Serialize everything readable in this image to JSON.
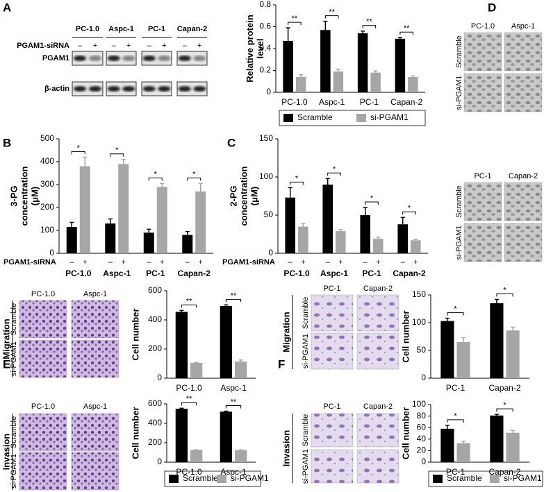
{
  "figure": {
    "panel_labels": [
      "A",
      "B",
      "C",
      "D",
      "E",
      "F"
    ],
    "blot": {
      "cell_lines": [
        "PC-1.0",
        "Aspc-1",
        "PC-1",
        "Capan-2"
      ],
      "treatment_label": "PGAM1-siRNA",
      "lanes": [
        "–",
        "+"
      ],
      "proteins": [
        "PGAM1",
        "β-actin"
      ]
    },
    "panel_d": {
      "top_lines": [
        "PC-1.0",
        "Aspc-1"
      ],
      "bottom_lines": [
        "PC-1",
        "Capan-2"
      ],
      "conditions": [
        "Scramble",
        "si-PGAM1"
      ]
    },
    "panel_e": {
      "lines": [
        "PC-1.0",
        "Aspc-1"
      ],
      "conditions": [
        "Scramble",
        "si-PGAM1"
      ],
      "assays": [
        "Migration",
        "Invasion"
      ]
    },
    "panel_f": {
      "lines": [
        "PC-1",
        "Capan-2"
      ],
      "conditions": [
        "Scramble",
        "si-PGAM1"
      ],
      "assays": [
        "Migration",
        "Invasion"
      ]
    }
  },
  "chart_data": [
    {
      "type": "bar",
      "ylabel": [
        "Relative protein",
        "level"
      ],
      "categories": [
        "PC-1.0",
        "Aspc-1",
        "PC-1",
        "Capan-2"
      ],
      "series": [
        {
          "name": "Scramble",
          "color": "#000000",
          "values": [
            0.47,
            0.57,
            0.54,
            0.49
          ],
          "errors": [
            0.12,
            0.08,
            0.02,
            0.01
          ]
        },
        {
          "name": "si-PGAM1",
          "color": "#a6a6a6",
          "values": [
            0.14,
            0.19,
            0.18,
            0.14
          ],
          "errors": [
            0.02,
            0.02,
            0.015,
            0.01
          ]
        }
      ],
      "ylim": [
        0,
        0.8
      ],
      "yticks": [
        0,
        0.2,
        0.4,
        0.6,
        0.8
      ],
      "significance": "**",
      "legend": true
    },
    {
      "type": "bar",
      "ylabel": [
        "3-PG",
        "concentration",
        "(μM)"
      ],
      "categories": [
        "PC-1.0",
        "Aspc-1",
        "PC-1",
        "Capan-2"
      ],
      "series": [
        {
          "name": "Scramble",
          "color": "#000000",
          "values": [
            115,
            130,
            90,
            80
          ],
          "errors": [
            20,
            20,
            15,
            15
          ]
        },
        {
          "name": "si-PGAM1",
          "color": "#a6a6a6",
          "values": [
            380,
            390,
            290,
            270
          ],
          "errors": [
            40,
            20,
            15,
            35
          ]
        }
      ],
      "ylim": [
        0,
        500
      ],
      "yticks": [
        0,
        100,
        200,
        300,
        400,
        500
      ],
      "significance": "*",
      "legend": false,
      "treatment_label": "PGAM1-siRNA",
      "treatment_marks": [
        "–",
        "+"
      ]
    },
    {
      "type": "bar",
      "ylabel": [
        "2-PG",
        "concentration",
        "(μM)"
      ],
      "categories": [
        "PC-1.0",
        "Aspc-1",
        "PC-1",
        "Capan-2"
      ],
      "series": [
        {
          "name": "Scramble",
          "color": "#000000",
          "values": [
            73,
            90,
            50,
            38
          ],
          "errors": [
            13,
            8,
            10,
            9
          ]
        },
        {
          "name": "si-PGAM1",
          "color": "#a6a6a6",
          "values": [
            35,
            29,
            19,
            17
          ],
          "errors": [
            4,
            2,
            2,
            1
          ]
        }
      ],
      "ylim": [
        0,
        150
      ],
      "yticks": [
        0,
        50,
        100,
        150
      ],
      "significance": "*",
      "legend": false,
      "treatment_label": "PGAM1-siRNA",
      "treatment_marks": [
        "–",
        "+"
      ]
    },
    {
      "type": "bar",
      "ylabel": [
        "Cell number"
      ],
      "categories": [
        "PC-1.0",
        "Aspc-1"
      ],
      "series": [
        {
          "name": "Scramble",
          "color": "#000000",
          "values": [
            455,
            495
          ],
          "errors": [
            10,
            8
          ]
        },
        {
          "name": "si-PGAM1",
          "color": "#a6a6a6",
          "values": [
            105,
            115
          ],
          "errors": [
            3,
            10
          ]
        }
      ],
      "ylim": [
        0,
        600
      ],
      "yticks": [
        0,
        200,
        400,
        600
      ],
      "significance": "**",
      "legend": false
    },
    {
      "type": "bar",
      "ylabel": [
        "Cell number"
      ],
      "categories": [
        "PC-1.0",
        "Aspc-1"
      ],
      "series": [
        {
          "name": "Scramble",
          "color": "#000000",
          "values": [
            550,
            520
          ],
          "errors": [
            5,
            5
          ]
        },
        {
          "name": "si-PGAM1",
          "color": "#a6a6a6",
          "values": [
            125,
            125
          ],
          "errors": [
            2,
            2
          ]
        }
      ],
      "ylim": [
        0,
        600
      ],
      "yticks": [
        0,
        200,
        400,
        600
      ],
      "significance": "**",
      "legend": true
    },
    {
      "type": "bar",
      "ylabel": [
        "Cell number"
      ],
      "categories": [
        "PC-1",
        "Capan-2"
      ],
      "series": [
        {
          "name": "Scramble",
          "color": "#000000",
          "values": [
            103,
            135
          ],
          "errors": [
            5,
            7
          ]
        },
        {
          "name": "si-PGAM1",
          "color": "#a6a6a6",
          "values": [
            65,
            86
          ],
          "errors": [
            8,
            6
          ]
        }
      ],
      "ylim": [
        0,
        150
      ],
      "yticks": [
        0,
        50,
        100,
        150
      ],
      "significance": "*",
      "legend": false
    },
    {
      "type": "bar",
      "ylabel": [
        "Cell number"
      ],
      "categories": [
        "PC-1",
        "Capan-2"
      ],
      "series": [
        {
          "name": "Scramble",
          "color": "#000000",
          "values": [
            58,
            81
          ],
          "errors": [
            6,
            2
          ]
        },
        {
          "name": "si-PGAM1",
          "color": "#a6a6a6",
          "values": [
            33,
            51
          ],
          "errors": [
            3,
            4
          ]
        }
      ],
      "ylim": [
        0,
        100
      ],
      "yticks": [
        0,
        20,
        40,
        60,
        80,
        100
      ],
      "significance": "*",
      "legend": true
    }
  ]
}
